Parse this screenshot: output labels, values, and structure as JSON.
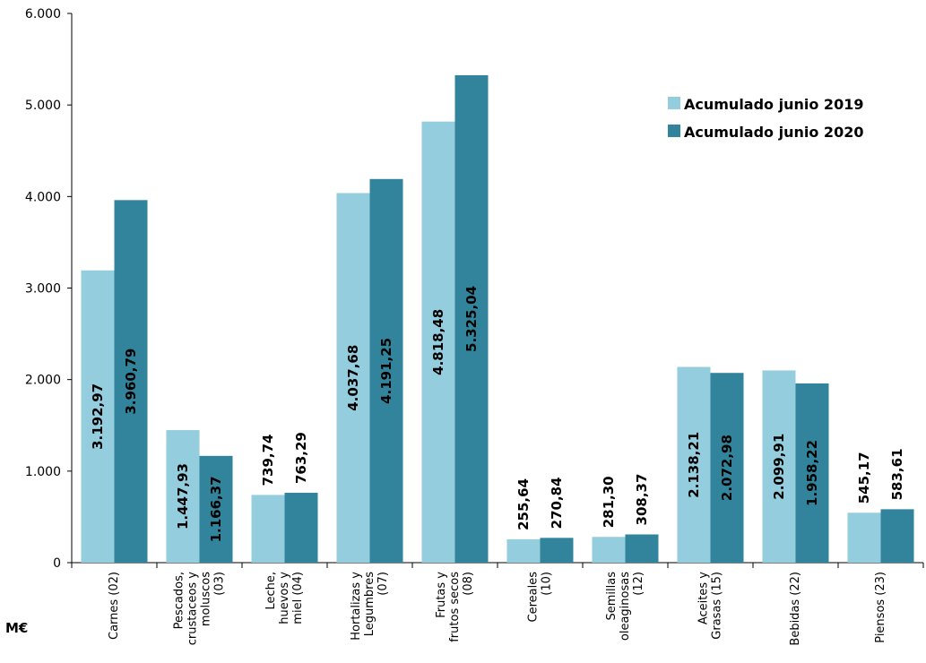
{
  "chart_data": {
    "type": "bar",
    "unit_label": "M€",
    "categories": [
      [
        "Carnes  (02)"
      ],
      [
        "Pescados,",
        "crustaceos y",
        "moluscos",
        "(03)"
      ],
      [
        "Leche,",
        "huevos y",
        "miel (04)"
      ],
      [
        "Hortalizas y",
        "Legumbres",
        "(07)"
      ],
      [
        "Frutas y",
        "frutos secos",
        "(08)"
      ],
      [
        "Cereales",
        "(10)"
      ],
      [
        "Semillas",
        "oleaginosas",
        "(12)"
      ],
      [
        "Aceites y",
        "Grasas (15)"
      ],
      [
        "Bebidas (22)"
      ],
      [
        "Piensos (23)"
      ]
    ],
    "series": [
      {
        "name": "Acumulado junio 2019",
        "color": "#93CDDE",
        "values": [
          3192.97,
          1447.93,
          739.74,
          4037.68,
          4818.48,
          255.64,
          281.3,
          2138.21,
          2099.91,
          545.17
        ],
        "labels": [
          "3.192,97",
          "1.447,93",
          "739,74",
          "4.037,68",
          "4.818,48",
          "255,64",
          "281,30",
          "2.138,21",
          "2.099,91",
          "545,17"
        ]
      },
      {
        "name": "Acumulado junio 2020",
        "color": "#31849B",
        "values": [
          3960.79,
          1166.37,
          763.29,
          4191.25,
          5325.04,
          270.84,
          308.37,
          2072.98,
          1958.22,
          583.61
        ],
        "labels": [
          "3.960,79",
          "1.166,37",
          "763,29",
          "4.191,25",
          "5.325,04",
          "270,84",
          "308,37",
          "2.072,98",
          "1.958,22",
          "583,61"
        ]
      }
    ],
    "y_ticks": [
      0,
      1000,
      2000,
      3000,
      4000,
      5000,
      6000
    ],
    "y_tick_labels": [
      "0",
      "1.000",
      "2.000",
      "3.000",
      "4.000",
      "5.000",
      "6.000"
    ],
    "ylim": [
      0,
      6000
    ],
    "grid": false,
    "legend_position": "top-right"
  }
}
